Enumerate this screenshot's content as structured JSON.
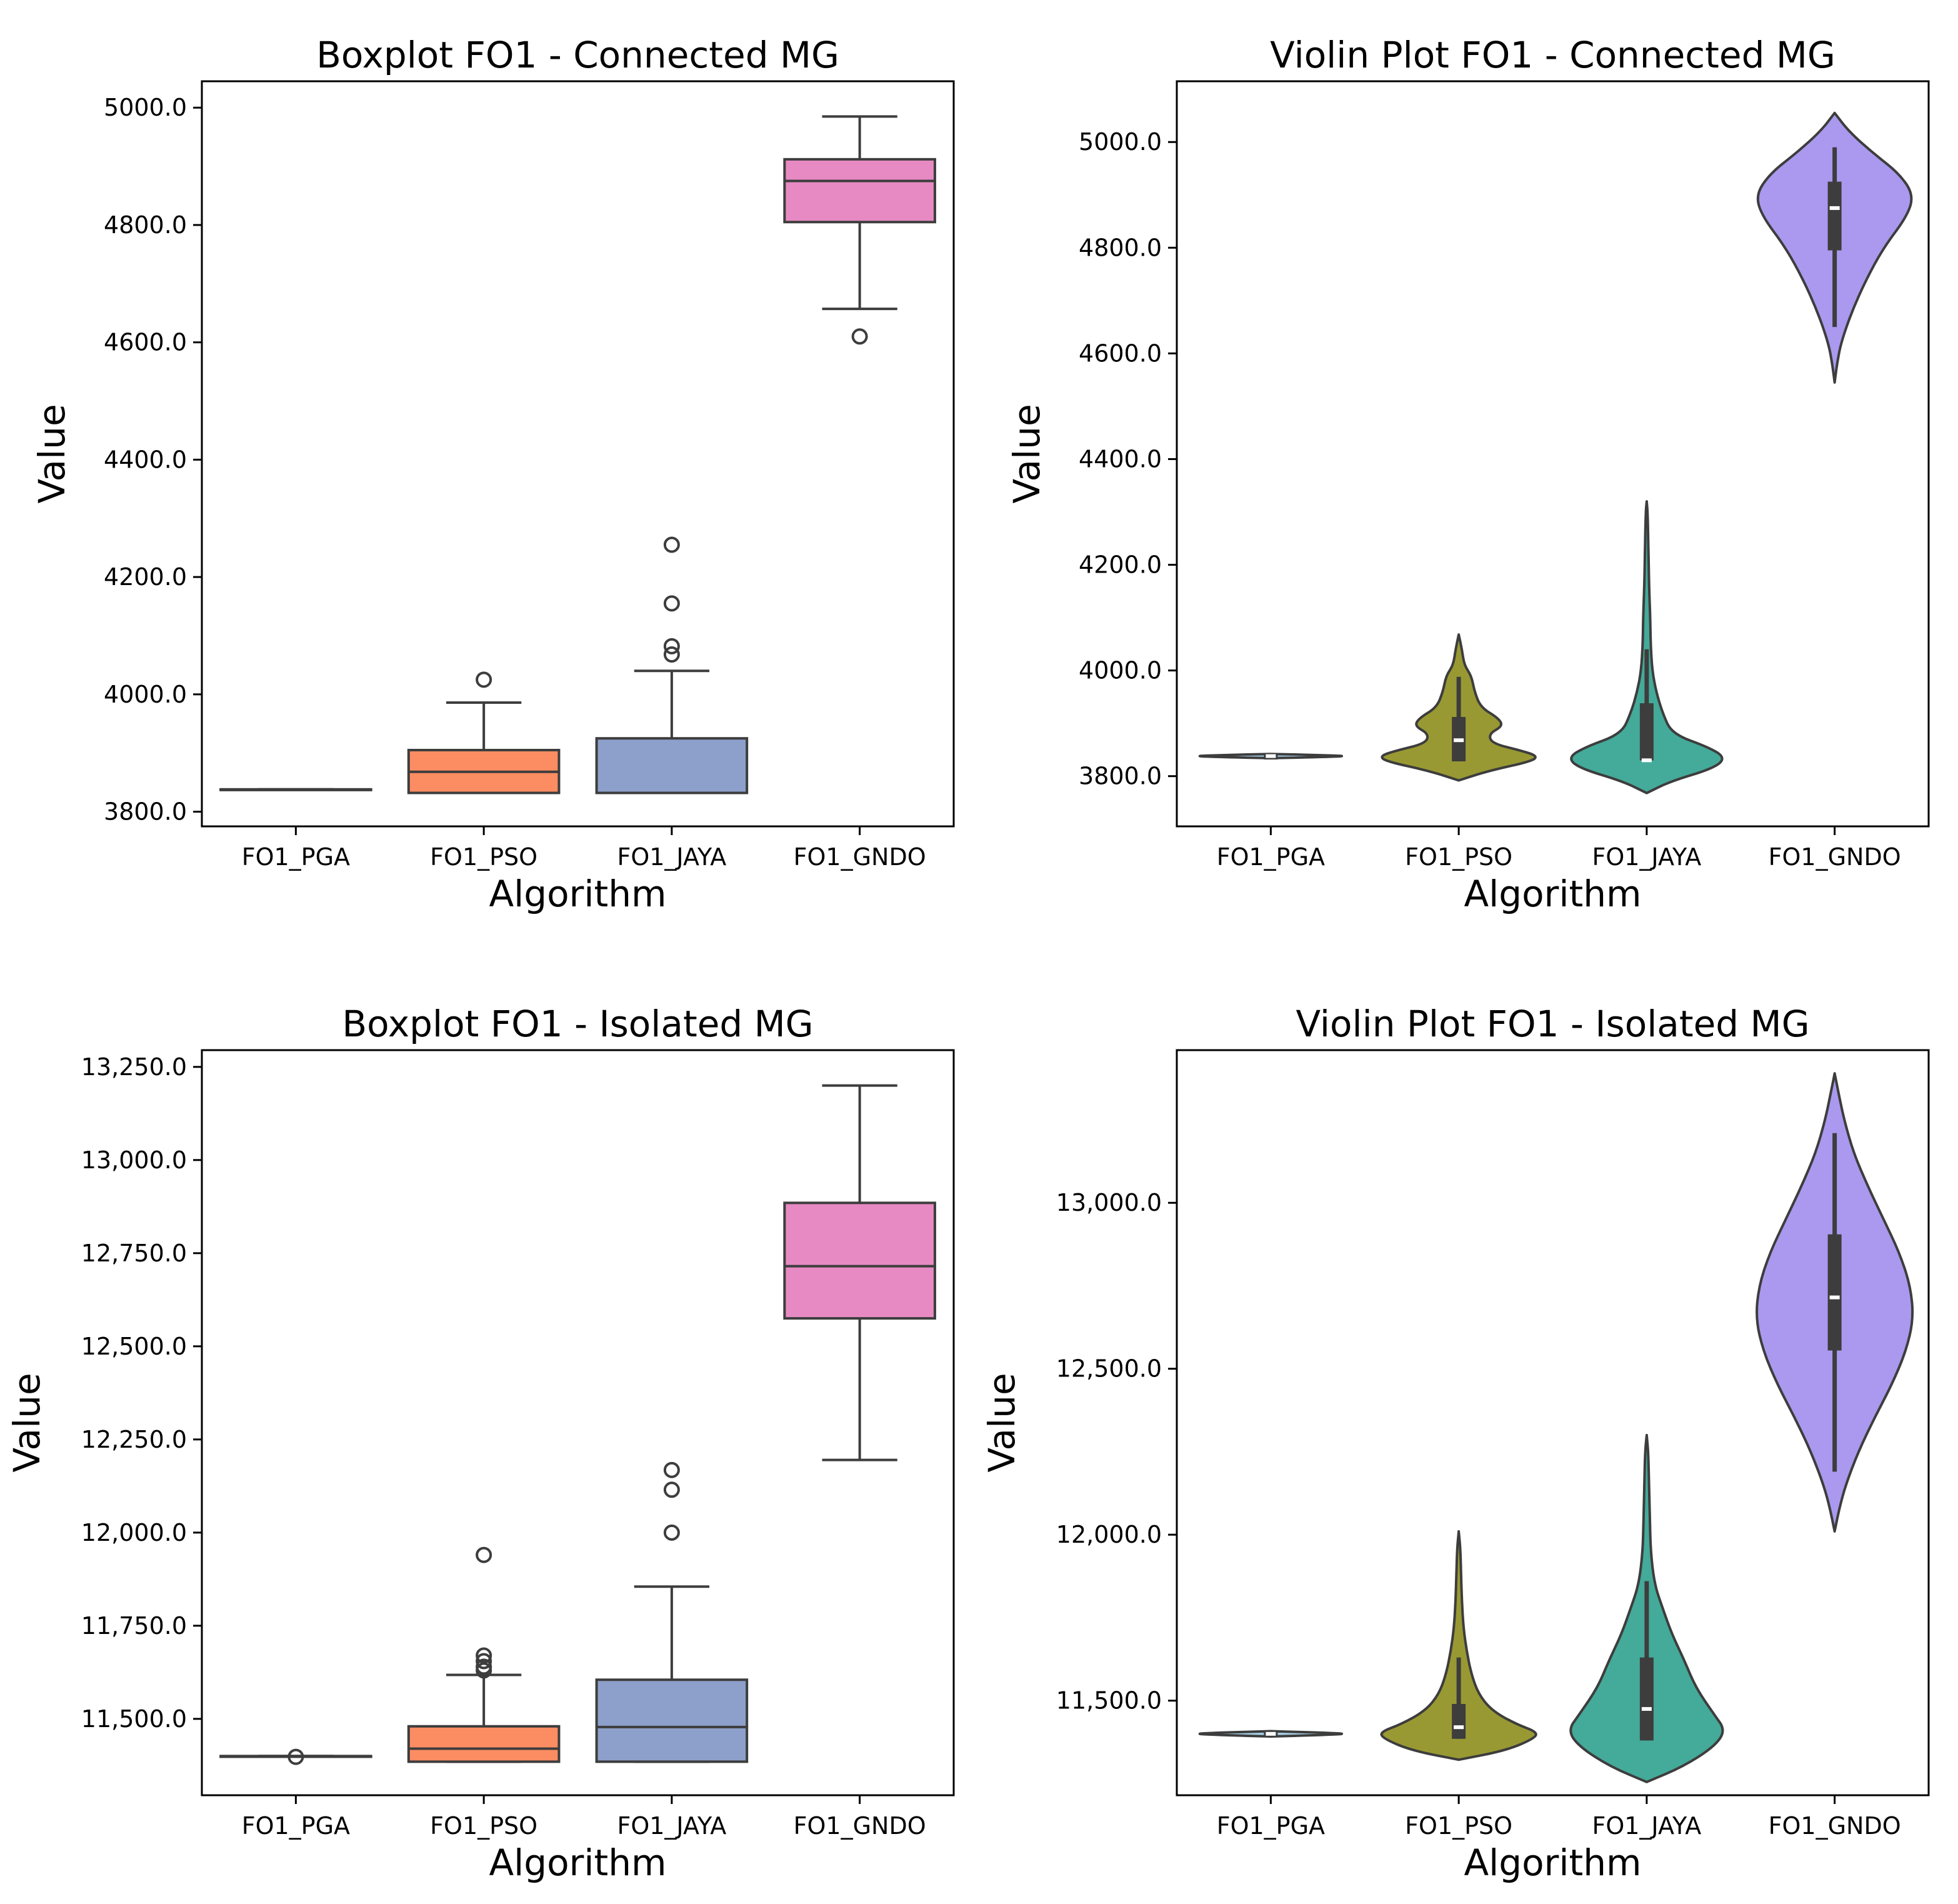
{
  "chart_data": [
    {
      "type": "box",
      "title": "Boxplot FO1 - Connected MG",
      "xlabel": "Algorithm",
      "ylabel": "Value",
      "ylim": [
        3775,
        5045
      ],
      "yticks": [
        3800,
        4000,
        4200,
        4400,
        4600,
        4800,
        5000
      ],
      "ytick_labels": [
        "3800.0",
        "4000.0",
        "4200.0",
        "4400.0",
        "4600.0",
        "4800.0",
        "5000.0"
      ],
      "categories": [
        "FO1_PGA",
        "FO1_PSO",
        "FO1_JAYA",
        "FO1_GNDO"
      ],
      "colors": [
        "#66c2a5",
        "#fc8d62",
        "#8da0cb",
        "#e78ac3"
      ],
      "boxes": [
        {
          "name": "FO1_PGA",
          "whislo": 3838,
          "q1": 3838,
          "med": 3838,
          "q3": 3838,
          "whishi": 3838,
          "fliers": []
        },
        {
          "name": "FO1_PSO",
          "whislo": 3832,
          "q1": 3832,
          "med": 3868,
          "q3": 3905,
          "whishi": 3986,
          "fliers": [
            4025
          ]
        },
        {
          "name": "FO1_JAYA",
          "whislo": 3832,
          "q1": 3832,
          "med": 3832,
          "q3": 3925,
          "whishi": 4040,
          "fliers": [
            4068,
            4082,
            4155,
            4255
          ]
        },
        {
          "name": "FO1_GNDO",
          "whislo": 4657,
          "q1": 4805,
          "med": 4875,
          "q3": 4912,
          "whishi": 4985,
          "fliers": [
            4610
          ]
        }
      ]
    },
    {
      "type": "violin",
      "title": "Violin Plot FO1 - Connected MG",
      "xlabel": "Algorithm",
      "ylabel": "Value",
      "ylim": [
        3705,
        5115
      ],
      "yticks": [
        3800,
        4000,
        4200,
        4400,
        4600,
        4800,
        5000
      ],
      "ytick_labels": [
        "3800.0",
        "4000.0",
        "4200.0",
        "4400.0",
        "4600.0",
        "4800.0",
        "5000.0"
      ],
      "categories": [
        "FO1_PGA",
        "FO1_PSO",
        "FO1_JAYA",
        "FO1_GNDO"
      ],
      "colors": [
        "#a6cee3",
        "#999933",
        "#44aa99",
        "#aa99ee"
      ],
      "violins": [
        {
          "name": "FO1_PGA",
          "min": 3834,
          "max": 3842,
          "profile": [
            [
              3834,
              0.0
            ],
            [
              3836,
              0.6
            ],
            [
              3838,
              1.0
            ],
            [
              3840,
              0.6
            ],
            [
              3842,
              0.0
            ]
          ],
          "q1": 3835,
          "med": 3838,
          "q3": 3841,
          "whislo": 3834,
          "whishi": 3842
        },
        {
          "name": "FO1_PSO",
          "min": 3792,
          "max": 4068,
          "profile": [
            [
              3792,
              0.0
            ],
            [
              3810,
              0.38
            ],
            [
              3828,
              0.92
            ],
            [
              3838,
              1.0
            ],
            [
              3848,
              0.8
            ],
            [
              3862,
              0.42
            ],
            [
              3880,
              0.38
            ],
            [
              3895,
              0.56
            ],
            [
              3910,
              0.5
            ],
            [
              3930,
              0.28
            ],
            [
              3960,
              0.2
            ],
            [
              3990,
              0.16
            ],
            [
              4010,
              0.07
            ],
            [
              4040,
              0.04
            ],
            [
              4068,
              0.0
            ]
          ],
          "q1": 3828,
          "med": 3868,
          "q3": 3912,
          "whislo": 3828,
          "whishi": 3988
        },
        {
          "name": "FO1_JAYA",
          "min": 3768,
          "max": 4320,
          "profile": [
            [
              3768,
              0.0
            ],
            [
              3790,
              0.3
            ],
            [
              3815,
              0.85
            ],
            [
              3835,
              1.0
            ],
            [
              3855,
              0.78
            ],
            [
              3880,
              0.32
            ],
            [
              3920,
              0.2
            ],
            [
              3960,
              0.12
            ],
            [
              4000,
              0.07
            ],
            [
              4050,
              0.05
            ],
            [
              4100,
              0.045
            ],
            [
              4160,
              0.03
            ],
            [
              4230,
              0.022
            ],
            [
              4300,
              0.012
            ],
            [
              4320,
              0.0
            ]
          ],
          "q1": 3830,
          "med": 3830,
          "q3": 3938,
          "whislo": 3830,
          "whishi": 4040
        },
        {
          "name": "FO1_GNDO",
          "min": 4545,
          "max": 5055,
          "profile": [
            [
              4545,
              0.0
            ],
            [
              4580,
              0.03
            ],
            [
              4620,
              0.08
            ],
            [
              4680,
              0.22
            ],
            [
              4740,
              0.4
            ],
            [
              4800,
              0.62
            ],
            [
              4860,
              0.92
            ],
            [
              4900,
              1.0
            ],
            [
              4940,
              0.82
            ],
            [
              4980,
              0.48
            ],
            [
              5020,
              0.18
            ],
            [
              5055,
              0.0
            ]
          ],
          "q1": 4795,
          "med": 4875,
          "q3": 4925,
          "whislo": 4650,
          "whishi": 4990
        }
      ]
    },
    {
      "type": "box",
      "title": "Boxplot FO1 - Isolated MG",
      "xlabel": "Algorithm",
      "ylabel": "Value",
      "ylim": [
        11295,
        13295
      ],
      "yticks": [
        11500,
        11750,
        12000,
        12250,
        12500,
        12750,
        13000,
        13250
      ],
      "ytick_labels": [
        "11,500.0",
        "11,750.0",
        "12,000.0",
        "12,250.0",
        "12,500.0",
        "12,750.0",
        "13,000.0",
        "13,250.0"
      ],
      "categories": [
        "FO1_PGA",
        "FO1_PSO",
        "FO1_JAYA",
        "FO1_GNDO"
      ],
      "colors": [
        "#66c2a5",
        "#fc8d62",
        "#8da0cb",
        "#e78ac3"
      ],
      "boxes": [
        {
          "name": "FO1_PGA",
          "whislo": 11400,
          "q1": 11400,
          "med": 11400,
          "q3": 11400,
          "whishi": 11400,
          "fliers": [
            11398
          ]
        },
        {
          "name": "FO1_PSO",
          "whislo": 11385,
          "q1": 11385,
          "med": 11420,
          "q3": 11480,
          "whishi": 11618,
          "fliers": [
            11630,
            11640,
            11655,
            11670,
            11940
          ]
        },
        {
          "name": "FO1_JAYA",
          "whislo": 11385,
          "q1": 11385,
          "med": 11478,
          "q3": 11605,
          "whishi": 11855,
          "fliers": [
            12000,
            12115,
            12168
          ]
        },
        {
          "name": "FO1_GNDO",
          "whislo": 12195,
          "q1": 12575,
          "med": 12715,
          "q3": 12885,
          "whishi": 13200,
          "fliers": []
        }
      ]
    },
    {
      "type": "violin",
      "title": "Violin Plot FO1 - Isolated MG",
      "xlabel": "Algorithm",
      "ylabel": "Value",
      "ylim": [
        11215,
        13460
      ],
      "yticks": [
        11500,
        12000,
        12500,
        13000
      ],
      "ytick_labels": [
        "11,500.0",
        "12,000.0",
        "12,500.0",
        "13,000.0"
      ],
      "categories": [
        "FO1_PGA",
        "FO1_PSO",
        "FO1_JAYA",
        "FO1_GNDO"
      ],
      "colors": [
        "#a6cee3",
        "#999933",
        "#44aa99",
        "#aa99ee"
      ],
      "violins": [
        {
          "name": "FO1_PGA",
          "min": 11392,
          "max": 11408,
          "profile": [
            [
              11392,
              0.0
            ],
            [
              11396,
              0.6
            ],
            [
              11400,
              1.0
            ],
            [
              11404,
              0.6
            ],
            [
              11408,
              0.0
            ]
          ],
          "q1": 11390,
          "med": 11400,
          "q3": 11410,
          "whislo": 11390,
          "whishi": 11410
        },
        {
          "name": "FO1_PSO",
          "min": 11322,
          "max": 12010,
          "profile": [
            [
              11322,
              0.0
            ],
            [
              11350,
              0.6
            ],
            [
              11385,
              0.95
            ],
            [
              11405,
              1.0
            ],
            [
              11430,
              0.72
            ],
            [
              11470,
              0.42
            ],
            [
              11520,
              0.25
            ],
            [
              11580,
              0.16
            ],
            [
              11650,
              0.1
            ],
            [
              11720,
              0.06
            ],
            [
              11800,
              0.04
            ],
            [
              11880,
              0.03
            ],
            [
              11960,
              0.02
            ],
            [
              12010,
              0.0
            ]
          ],
          "q1": 11385,
          "med": 11420,
          "q3": 11490,
          "whislo": 11385,
          "whishi": 11630
        },
        {
          "name": "FO1_JAYA",
          "min": 11255,
          "max": 12300,
          "profile": [
            [
              11255,
              0.0
            ],
            [
              11300,
              0.45
            ],
            [
              11360,
              0.85
            ],
            [
              11410,
              1.0
            ],
            [
              11460,
              0.85
            ],
            [
              11540,
              0.62
            ],
            [
              11620,
              0.48
            ],
            [
              11700,
              0.32
            ],
            [
              11780,
              0.2
            ],
            [
              11850,
              0.1
            ],
            [
              11950,
              0.05
            ],
            [
              12050,
              0.04
            ],
            [
              12150,
              0.03
            ],
            [
              12250,
              0.02
            ],
            [
              12300,
              0.0
            ]
          ],
          "q1": 11380,
          "med": 11475,
          "q3": 11630,
          "whislo": 11380,
          "whishi": 11860
        },
        {
          "name": "FO1_GNDO",
          "min": 12010,
          "max": 13390,
          "profile": [
            [
              12010,
              0.0
            ],
            [
              12080,
              0.06
            ],
            [
              12150,
              0.14
            ],
            [
              12250,
              0.3
            ],
            [
              12350,
              0.5
            ],
            [
              12450,
              0.72
            ],
            [
              12550,
              0.9
            ],
            [
              12650,
              1.0
            ],
            [
              12750,
              0.96
            ],
            [
              12850,
              0.82
            ],
            [
              12950,
              0.62
            ],
            [
              13050,
              0.42
            ],
            [
              13150,
              0.24
            ],
            [
              13250,
              0.12
            ],
            [
              13330,
              0.05
            ],
            [
              13390,
              0.0
            ]
          ],
          "q1": 12555,
          "med": 12715,
          "q3": 12905,
          "whislo": 12190,
          "whishi": 13210
        }
      ]
    }
  ]
}
